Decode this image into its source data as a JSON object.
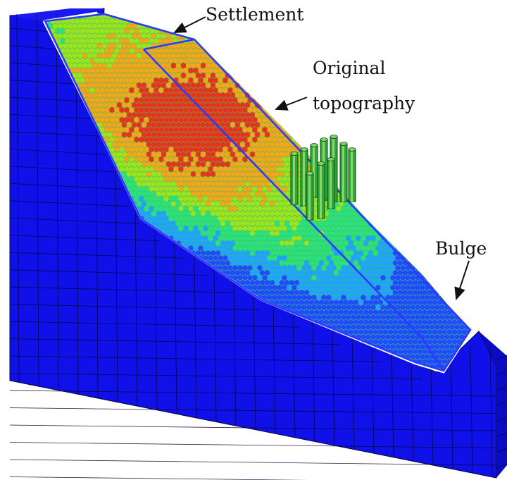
{
  "annotations": {
    "settlement": "Settlement",
    "original_line1": "Original",
    "original_line2": "topography",
    "bulge": "Bulge"
  },
  "colors": {
    "mesh_blue": "#1010e8",
    "mesh_line": "#050530",
    "outline_blue": "#2a3bff",
    "outline_white": "#ffffff",
    "particle_scale": [
      "#1f4cff",
      "#1fa3ff",
      "#2ee07a",
      "#9be31f",
      "#f2a61a",
      "#e8331a"
    ]
  },
  "icons": {
    "piles": "vertical-pile-cylinders",
    "arrows": "leader-arrow"
  }
}
